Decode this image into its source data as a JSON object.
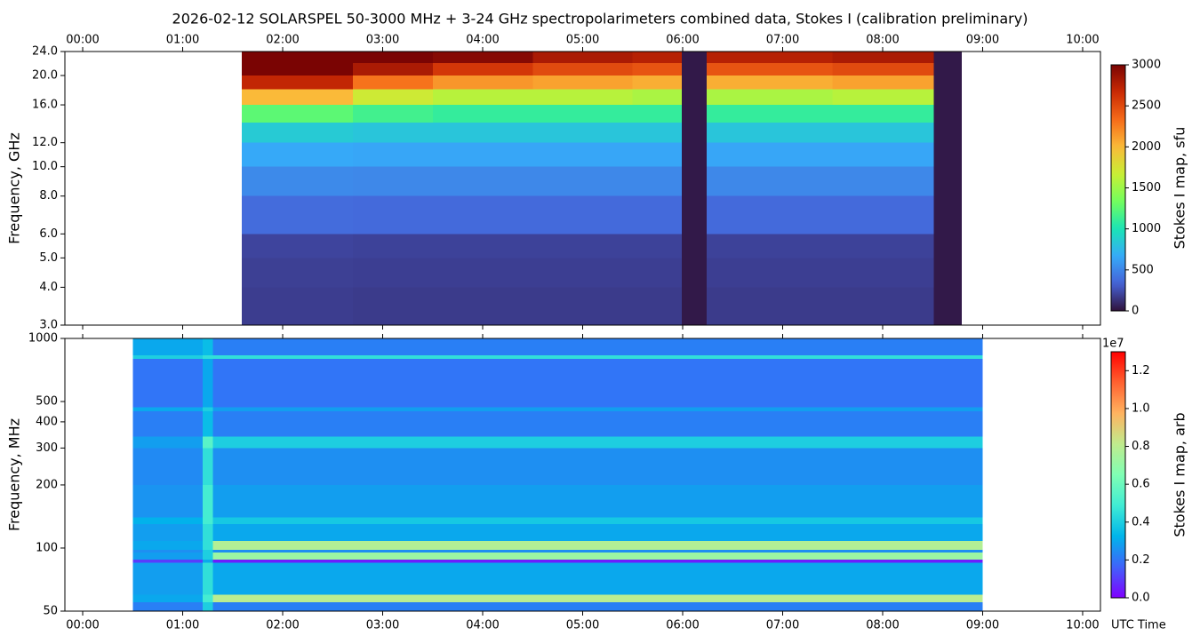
{
  "chart_data": [
    {
      "type": "heatmap",
      "title": "2026-02-12  SOLARSPEL  50-3000 MHz  +  3-24 GHz  spectropolarimeters combined data,  Stokes I  (calibration preliminary)",
      "ylabel": "Frequency, GHz",
      "xlim": [
        -0.178,
        10.178
      ],
      "xticks": [
        {
          "value": 0,
          "label": "00:00"
        },
        {
          "value": 1,
          "label": "01:00"
        },
        {
          "value": 2,
          "label": "02:00"
        },
        {
          "value": 3,
          "label": "03:00"
        },
        {
          "value": 4,
          "label": "04:00"
        },
        {
          "value": 5,
          "label": "05:00"
        },
        {
          "value": 6,
          "label": "06:00"
        },
        {
          "value": 7,
          "label": "07:00"
        },
        {
          "value": 8,
          "label": "08:00"
        },
        {
          "value": 9,
          "label": "09:00"
        },
        {
          "value": 10,
          "label": "10:00"
        }
      ],
      "xtick_position": "top",
      "ylim": [
        3,
        24
      ],
      "log_scale": true,
      "yticks": [
        {
          "value": 3,
          "label": "3.0"
        },
        {
          "value": 4,
          "label": "4.0"
        },
        {
          "value": 5,
          "label": "5.0"
        },
        {
          "value": 6,
          "label": "6.0"
        },
        {
          "value": 8,
          "label": "8.0"
        },
        {
          "value": 10,
          "label": "10.0"
        },
        {
          "value": 12,
          "label": "12.0"
        },
        {
          "value": 16,
          "label": "16.0"
        },
        {
          "value": 20,
          "label": "20.0"
        },
        {
          "value": 24,
          "label": "24.0"
        }
      ],
      "x_edges": [
        1.59,
        2.7,
        3.5,
        4.5,
        5.5,
        5.99,
        6.24,
        7.5,
        8.51,
        8.79
      ],
      "y_edges": [
        3,
        4,
        5,
        6,
        8,
        10,
        12,
        14,
        16,
        18,
        20,
        22,
        24
      ],
      "z": [
        [
          180,
          170,
          170,
          170,
          170,
          30,
          170,
          170,
          30
        ],
        [
          190,
          185,
          185,
          185,
          185,
          30,
          185,
          185,
          30
        ],
        [
          210,
          200,
          200,
          200,
          200,
          30,
          200,
          200,
          30
        ],
        [
          380,
          370,
          370,
          370,
          370,
          30,
          370,
          370,
          30
        ],
        [
          520,
          510,
          510,
          510,
          510,
          30,
          510,
          510,
          30
        ],
        [
          660,
          650,
          650,
          650,
          650,
          30,
          650,
          650,
          30
        ],
        [
          850,
          820,
          820,
          820,
          820,
          30,
          820,
          820,
          30
        ],
        [
          1250,
          1150,
          1100,
          1100,
          1100,
          30,
          1100,
          1100,
          30
        ],
        [
          2000,
          1700,
          1600,
          1600,
          1550,
          30,
          1550,
          1600,
          30
        ],
        [
          2700,
          2300,
          2150,
          2100,
          2050,
          30,
          2050,
          2100,
          30
        ],
        [
          3000,
          2800,
          2600,
          2500,
          2450,
          30,
          2450,
          2500,
          30
        ],
        [
          3000,
          3000,
          2950,
          2800,
          2750,
          30,
          2750,
          2800,
          30
        ]
      ],
      "colormap": [
        "#30123b",
        "#4662d7",
        "#36aaf9",
        "#1ae4b6",
        "#72fe5e",
        "#c8ef34",
        "#faba39",
        "#f66b19",
        "#ca2a04",
        "#7a0403"
      ],
      "clim": [
        0,
        3000
      ],
      "cticks": [
        0,
        500,
        1000,
        1500,
        2000,
        2500,
        3000
      ],
      "colorbar_label": "Stokes I map, sfu"
    },
    {
      "type": "heatmap",
      "ylabel": "Frequency, MHz",
      "xlabel": "UTC Time",
      "xlim": [
        -0.178,
        10.178
      ],
      "xticks": [
        {
          "value": 0,
          "label": "00:00"
        },
        {
          "value": 1,
          "label": "01:00"
        },
        {
          "value": 2,
          "label": "02:00"
        },
        {
          "value": 3,
          "label": "03:00"
        },
        {
          "value": 4,
          "label": "04:00"
        },
        {
          "value": 5,
          "label": "05:00"
        },
        {
          "value": 6,
          "label": "06:00"
        },
        {
          "value": 7,
          "label": "07:00"
        },
        {
          "value": 8,
          "label": "08:00"
        },
        {
          "value": 9,
          "label": "09:00"
        },
        {
          "value": 10,
          "label": "10:00"
        }
      ],
      "xtick_position": "bottom",
      "ylim": [
        50,
        1000
      ],
      "log_scale": true,
      "yticks": [
        50,
        100,
        200,
        300,
        400,
        500,
        1000
      ],
      "x_edges": [
        0.5,
        1.2,
        1.3,
        9.0
      ],
      "y_edges": [
        50,
        55,
        60,
        85,
        88,
        95,
        98,
        108,
        130,
        140,
        200,
        300,
        340,
        450,
        470,
        800,
        830,
        1000
      ],
      "z": [
        [
          0.22,
          0.4,
          0.22
        ],
        [
          0.3,
          0.5,
          0.8
        ],
        [
          0.28,
          0.45,
          0.3
        ],
        [
          0.1,
          0.3,
          0.05
        ],
        [
          0.28,
          0.4,
          0.72
        ],
        [
          0.25,
          0.4,
          0.25
        ],
        [
          0.3,
          0.45,
          0.78
        ],
        [
          0.28,
          0.45,
          0.3
        ],
        [
          0.32,
          0.5,
          0.38
        ],
        [
          0.26,
          0.5,
          0.28
        ],
        [
          0.24,
          0.45,
          0.25
        ],
        [
          0.28,
          0.55,
          0.4
        ],
        [
          0.22,
          0.35,
          0.22
        ],
        [
          0.3,
          0.4,
          0.28
        ],
        [
          0.2,
          0.3,
          0.2
        ],
        [
          0.4,
          0.45,
          0.45
        ],
        [
          0.3,
          0.35,
          0.22
        ]
      ],
      "colormap": [
        "#8000ff",
        "#4062fa",
        "#00b5eb",
        "#40ecd4",
        "#80ffb4",
        "#c0eb8d",
        "#ffb360",
        "#ff6230",
        "#ff0000"
      ],
      "clim": [
        0,
        1.3
      ],
      "cticks": [
        {
          "value": 0,
          "label": "0.0"
        },
        0.2,
        0.4,
        0.6,
        0.8,
        {
          "value": 1,
          "label": "1.0"
        },
        1.2
      ],
      "colorbar_offset_label": "1e7",
      "colorbar_label": "Stokes I map, arb"
    }
  ]
}
